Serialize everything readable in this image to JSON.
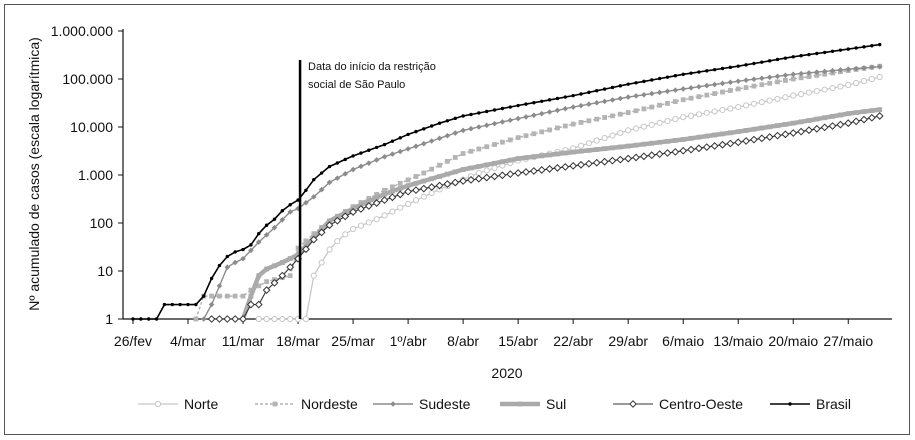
{
  "chart_data": {
    "type": "line",
    "title": "",
    "ylabel": "Nº acumulado de casos (escala logarítmica)",
    "xlabel": "2020",
    "y_scale": "log",
    "ylim": [
      1,
      1000000
    ],
    "yticks": [
      1,
      10,
      100,
      1000,
      10000,
      100000,
      1000000
    ],
    "ytick_labels": [
      "1",
      "10",
      "100",
      "1.000",
      "10.000",
      "100.000",
      "1.000.000"
    ],
    "xlim": [
      "2020-02-26",
      "2020-05-31"
    ],
    "xticks": [
      "2020-02-26",
      "2020-03-04",
      "2020-03-11",
      "2020-03-18",
      "2020-03-25",
      "2020-04-01",
      "2020-04-08",
      "2020-04-15",
      "2020-04-22",
      "2020-04-29",
      "2020-05-06",
      "2020-05-13",
      "2020-05-20",
      "2020-05-27"
    ],
    "xtick_labels": [
      "26/fev",
      "4/mar",
      "11/mar",
      "18/mar",
      "25/mar",
      "1º/abr",
      "8/abr",
      "15/abr",
      "22/abr",
      "29/abr",
      "6/maio",
      "13/maio",
      "20/maio",
      "27/maio"
    ],
    "grid": false,
    "legend_position": "bottom",
    "annotation": {
      "lines": [
        "Data do início da restrição",
        "social de São Paulo"
      ],
      "date": "2020-03-18"
    },
    "series": [
      {
        "name": "Norte",
        "color": "#c8c8c8",
        "marker": "circle-open",
        "width": 1.3,
        "points": [
          [
            "2020-03-13",
            1
          ],
          [
            "2020-03-19",
            1
          ],
          [
            "2020-03-20",
            8
          ],
          [
            "2020-03-21",
            15
          ],
          [
            "2020-03-22",
            28
          ],
          [
            "2020-03-23",
            42
          ],
          [
            "2020-03-24",
            58
          ],
          [
            "2020-03-25",
            75
          ],
          [
            "2020-03-28",
            120
          ],
          [
            "2020-04-01",
            250
          ],
          [
            "2020-04-05",
            500
          ],
          [
            "2020-04-10",
            1100
          ],
          [
            "2020-04-15",
            2000
          ],
          [
            "2020-04-22",
            3600
          ],
          [
            "2020-04-29",
            8500
          ],
          [
            "2020-05-06",
            16000
          ],
          [
            "2020-05-13",
            26000
          ],
          [
            "2020-05-20",
            45000
          ],
          [
            "2020-05-27",
            75000
          ],
          [
            "2020-05-31",
            110000
          ]
        ]
      },
      {
        "name": "Nordeste",
        "color": "#b4b4b4",
        "marker": "square",
        "width": 1.5,
        "dash": "3,2",
        "points": [
          [
            "2020-03-05",
            1
          ],
          [
            "2020-03-06",
            3
          ],
          [
            "2020-03-09",
            3
          ],
          [
            "2020-03-11",
            3
          ],
          [
            "2020-03-12",
            4
          ],
          [
            "2020-03-14",
            6
          ],
          [
            "2020-03-17",
            8
          ],
          [
            "2020-03-18",
            30
          ],
          [
            "2020-03-20",
            60
          ],
          [
            "2020-03-22",
            110
          ],
          [
            "2020-03-25",
            220
          ],
          [
            "2020-03-29",
            480
          ],
          [
            "2020-04-03",
            1100
          ],
          [
            "2020-04-08",
            2800
          ],
          [
            "2020-04-15",
            6000
          ],
          [
            "2020-04-22",
            11500
          ],
          [
            "2020-04-29",
            20000
          ],
          [
            "2020-05-06",
            37000
          ],
          [
            "2020-05-13",
            62000
          ],
          [
            "2020-05-20",
            100000
          ],
          [
            "2020-05-27",
            150000
          ],
          [
            "2020-05-31",
            185000
          ]
        ]
      },
      {
        "name": "Sudeste",
        "color": "#8c8c8c",
        "marker": "diamond",
        "width": 1.4,
        "points": [
          [
            "2020-03-06",
            1
          ],
          [
            "2020-03-07",
            2
          ],
          [
            "2020-03-09",
            12
          ],
          [
            "2020-03-10",
            15
          ],
          [
            "2020-03-11",
            18
          ],
          [
            "2020-03-13",
            40
          ],
          [
            "2020-03-15",
            80
          ],
          [
            "2020-03-17",
            170
          ],
          [
            "2020-03-18",
            200
          ],
          [
            "2020-03-20",
            350
          ],
          [
            "2020-03-22",
            700
          ],
          [
            "2020-03-25",
            1300
          ],
          [
            "2020-03-29",
            2400
          ],
          [
            "2020-04-03",
            4500
          ],
          [
            "2020-04-08",
            8500
          ],
          [
            "2020-04-15",
            15000
          ],
          [
            "2020-04-22",
            26000
          ],
          [
            "2020-04-29",
            42000
          ],
          [
            "2020-05-06",
            62000
          ],
          [
            "2020-05-13",
            90000
          ],
          [
            "2020-05-20",
            125000
          ],
          [
            "2020-05-27",
            160000
          ],
          [
            "2020-05-31",
            180000
          ]
        ]
      },
      {
        "name": "Sul",
        "color": "#aaaaaa",
        "marker": "square",
        "width": 4.5,
        "points": [
          [
            "2020-03-11",
            1
          ],
          [
            "2020-03-12",
            3
          ],
          [
            "2020-03-13",
            8
          ],
          [
            "2020-03-14",
            11
          ],
          [
            "2020-03-16",
            15
          ],
          [
            "2020-03-18",
            22
          ],
          [
            "2020-03-20",
            50
          ],
          [
            "2020-03-22",
            110
          ],
          [
            "2020-03-25",
            200
          ],
          [
            "2020-03-29",
            400
          ],
          [
            "2020-04-01",
            600
          ],
          [
            "2020-04-08",
            1300
          ],
          [
            "2020-04-15",
            2200
          ],
          [
            "2020-04-22",
            3000
          ],
          [
            "2020-04-29",
            4000
          ],
          [
            "2020-05-06",
            5500
          ],
          [
            "2020-05-13",
            8000
          ],
          [
            "2020-05-20",
            12000
          ],
          [
            "2020-05-27",
            19000
          ],
          [
            "2020-05-31",
            23000
          ]
        ]
      },
      {
        "name": "Centro-Oeste",
        "color": "#333333",
        "marker": "diamond-open",
        "width": 1.1,
        "points": [
          [
            "2020-03-07",
            1
          ],
          [
            "2020-03-11",
            1
          ],
          [
            "2020-03-12",
            2
          ],
          [
            "2020-03-13",
            2
          ],
          [
            "2020-03-14",
            4
          ],
          [
            "2020-03-16",
            8
          ],
          [
            "2020-03-18",
            18
          ],
          [
            "2020-03-20",
            45
          ],
          [
            "2020-03-22",
            90
          ],
          [
            "2020-03-25",
            170
          ],
          [
            "2020-03-29",
            300
          ],
          [
            "2020-04-01",
            450
          ],
          [
            "2020-04-08",
            750
          ],
          [
            "2020-04-15",
            1100
          ],
          [
            "2020-04-22",
            1550
          ],
          [
            "2020-04-29",
            2200
          ],
          [
            "2020-05-06",
            3200
          ],
          [
            "2020-05-13",
            4800
          ],
          [
            "2020-05-20",
            7500
          ],
          [
            "2020-05-27",
            12000
          ],
          [
            "2020-05-31",
            17000
          ]
        ]
      },
      {
        "name": "Brasil",
        "color": "#000000",
        "marker": "dot",
        "width": 1.6,
        "points": [
          [
            "2020-02-26",
            1
          ],
          [
            "2020-02-29",
            1
          ],
          [
            "2020-03-01",
            2
          ],
          [
            "2020-03-05",
            2
          ],
          [
            "2020-03-06",
            3
          ],
          [
            "2020-03-07",
            7
          ],
          [
            "2020-03-08",
            13
          ],
          [
            "2020-03-09",
            20
          ],
          [
            "2020-03-10",
            25
          ],
          [
            "2020-03-11",
            28
          ],
          [
            "2020-03-12",
            35
          ],
          [
            "2020-03-13",
            60
          ],
          [
            "2020-03-14",
            90
          ],
          [
            "2020-03-15",
            120
          ],
          [
            "2020-03-16",
            180
          ],
          [
            "2020-03-17",
            240
          ],
          [
            "2020-03-18",
            300
          ],
          [
            "2020-03-19",
            480
          ],
          [
            "2020-03-20",
            800
          ],
          [
            "2020-03-21",
            1100
          ],
          [
            "2020-03-22",
            1500
          ],
          [
            "2020-03-25",
            2500
          ],
          [
            "2020-03-29",
            4300
          ],
          [
            "2020-04-01",
            7000
          ],
          [
            "2020-04-05",
            12000
          ],
          [
            "2020-04-08",
            17000
          ],
          [
            "2020-04-15",
            28000
          ],
          [
            "2020-04-22",
            45000
          ],
          [
            "2020-04-29",
            78000
          ],
          [
            "2020-05-06",
            125000
          ],
          [
            "2020-05-13",
            185000
          ],
          [
            "2020-05-20",
            290000
          ],
          [
            "2020-05-27",
            420000
          ],
          [
            "2020-05-31",
            520000
          ]
        ]
      }
    ]
  }
}
